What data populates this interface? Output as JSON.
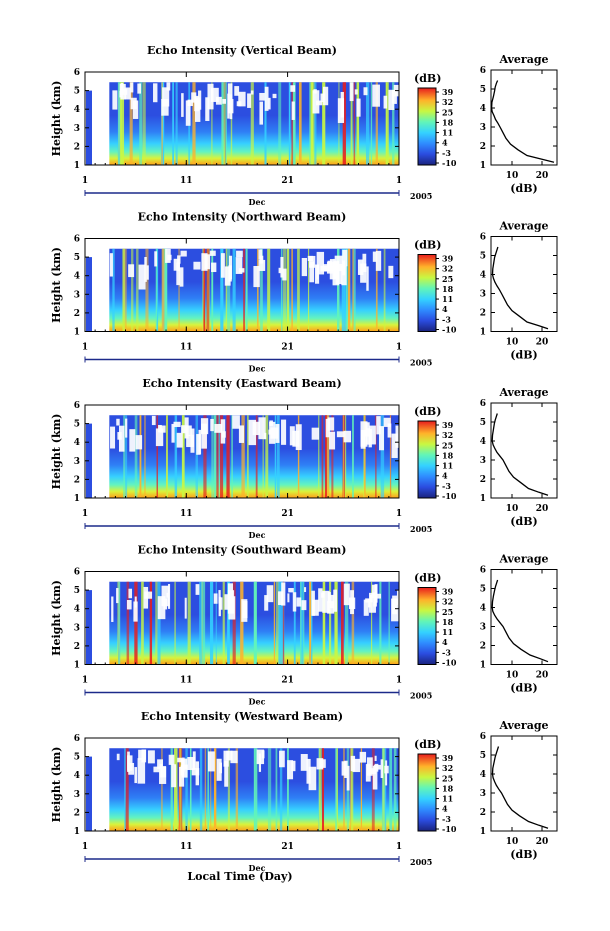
{
  "figure": {
    "xlabel": "Local Time (Day)",
    "month_label": "Dec",
    "year_label": "2005"
  },
  "chart_data": [
    {
      "type": "heatmap",
      "title": "Echo Intensity (Vertical Beam)",
      "ylabel": "Height (km)",
      "xlabel": "",
      "x_ticks": [
        "1",
        "11",
        "21",
        "1"
      ],
      "y_ticks": [
        "1",
        "2",
        "3",
        "4",
        "5",
        "6"
      ],
      "ylim": [
        1,
        6
      ],
      "colorbar_unit": "(dB)",
      "colorbar_ticks": [
        "39",
        "32",
        "25",
        "18",
        "11",
        "4",
        "-3",
        "-10"
      ],
      "colorbar_range": [
        -10,
        39
      ],
      "data_gap_days": [
        1,
        2.4
      ],
      "average": {
        "title": "Average",
        "xlabel": "(dB)",
        "x_ticks": [
          "10",
          "20"
        ],
        "x_range": [
          3,
          25
        ],
        "y_ticks": [
          "1",
          "2",
          "3",
          "4",
          "5",
          "6"
        ],
        "profile_db": [
          24,
          20,
          15,
          12,
          9.5,
          8,
          7,
          6,
          5.3,
          4.5,
          4,
          3.4,
          3.2,
          3.3,
          3.8,
          4.2,
          4.4,
          4.8,
          5.2
        ],
        "profile_km": [
          1.15,
          1.3,
          1.5,
          1.8,
          2.1,
          2.4,
          2.7,
          3.0,
          3.2,
          3.4,
          3.6,
          3.8,
          4.0,
          4.3,
          4.6,
          4.9,
          5.1,
          5.3,
          5.45
        ]
      }
    },
    {
      "type": "heatmap",
      "title": "Echo Intensity (Northward Beam)",
      "ylabel": "Height (km)",
      "xlabel": "",
      "x_ticks": [
        "1",
        "11",
        "21",
        "1"
      ],
      "y_ticks": [
        "1",
        "2",
        "3",
        "4",
        "5",
        "6"
      ],
      "ylim": [
        1,
        6
      ],
      "colorbar_unit": "(dB)",
      "colorbar_ticks": [
        "39",
        "32",
        "25",
        "18",
        "11",
        "4",
        "-3",
        "-10"
      ],
      "colorbar_range": [
        -10,
        39
      ],
      "data_gap_days": [
        1,
        2.4
      ],
      "average": {
        "title": "Average",
        "xlabel": "(dB)",
        "x_ticks": [
          "10",
          "20"
        ],
        "x_range": [
          3,
          25
        ],
        "y_ticks": [
          "1",
          "2",
          "3",
          "4",
          "5",
          "6"
        ],
        "profile_db": [
          22,
          19,
          15,
          12.5,
          10,
          8.5,
          7.5,
          6.5,
          5.8,
          5,
          4.3,
          3.8,
          3.5,
          3.6,
          3.9,
          4.2,
          4.6,
          5,
          5.3
        ],
        "profile_km": [
          1.15,
          1.3,
          1.5,
          1.8,
          2.1,
          2.4,
          2.7,
          3.0,
          3.2,
          3.4,
          3.6,
          3.8,
          4.0,
          4.3,
          4.6,
          4.9,
          5.1,
          5.3,
          5.45
        ]
      }
    },
    {
      "type": "heatmap",
      "title": "Echo Intensity (Eastward Beam)",
      "ylabel": "Height (km)",
      "xlabel": "",
      "x_ticks": [
        "1",
        "11",
        "21",
        "1"
      ],
      "y_ticks": [
        "1",
        "2",
        "3",
        "4",
        "5",
        "6"
      ],
      "ylim": [
        1,
        6
      ],
      "colorbar_unit": "(dB)",
      "colorbar_ticks": [
        "39",
        "32",
        "25",
        "18",
        "11",
        "4",
        "-3",
        "-10"
      ],
      "colorbar_range": [
        -10,
        39
      ],
      "data_gap_days": [
        1,
        2.4
      ],
      "average": {
        "title": "Average",
        "xlabel": "(dB)",
        "x_ticks": [
          "10",
          "20"
        ],
        "x_range": [
          3,
          25
        ],
        "y_ticks": [
          "1",
          "2",
          "3",
          "4",
          "5",
          "6"
        ],
        "profile_db": [
          22,
          19,
          15.5,
          13,
          10.5,
          9,
          8,
          7,
          6,
          5,
          4.3,
          3.7,
          3.4,
          3.5,
          3.8,
          4.1,
          4.4,
          4.8,
          5.1
        ],
        "profile_km": [
          1.15,
          1.3,
          1.5,
          1.8,
          2.1,
          2.4,
          2.7,
          3.0,
          3.2,
          3.4,
          3.6,
          3.8,
          4.0,
          4.3,
          4.6,
          4.9,
          5.1,
          5.3,
          5.45
        ]
      }
    },
    {
      "type": "heatmap",
      "title": "Echo Intensity (Southward Beam)",
      "ylabel": "Height (km)",
      "xlabel": "",
      "x_ticks": [
        "1",
        "11",
        "21",
        "1"
      ],
      "y_ticks": [
        "1",
        "2",
        "3",
        "4",
        "5",
        "6"
      ],
      "ylim": [
        1,
        6
      ],
      "colorbar_unit": "(dB)",
      "colorbar_ticks": [
        "39",
        "32",
        "25",
        "18",
        "11",
        "4",
        "-3",
        "-10"
      ],
      "colorbar_range": [
        -10,
        39
      ],
      "data_gap_days": [
        1,
        2.4
      ],
      "average": {
        "title": "Average",
        "xlabel": "(dB)",
        "x_ticks": [
          "10",
          "20"
        ],
        "x_range": [
          3,
          25
        ],
        "y_ticks": [
          "1",
          "2",
          "3",
          "4",
          "5",
          "6"
        ],
        "profile_db": [
          22,
          19.5,
          16,
          13,
          10.5,
          9,
          8,
          7,
          6,
          5,
          4.2,
          3.6,
          3.4,
          3.5,
          3.8,
          4.2,
          4.5,
          4.9,
          5.2
        ],
        "profile_km": [
          1.15,
          1.3,
          1.5,
          1.8,
          2.1,
          2.4,
          2.7,
          3.0,
          3.2,
          3.4,
          3.6,
          3.8,
          4.0,
          4.3,
          4.6,
          4.9,
          5.1,
          5.3,
          5.45
        ]
      }
    },
    {
      "type": "heatmap",
      "title": "Echo Intensity (Westward Beam)",
      "ylabel": "Height (km)",
      "xlabel": "",
      "x_ticks": [
        "1",
        "11",
        "21",
        "1"
      ],
      "y_ticks": [
        "1",
        "2",
        "3",
        "4",
        "5",
        "6"
      ],
      "ylim": [
        1,
        6
      ],
      "colorbar_unit": "(dB)",
      "colorbar_ticks": [
        "39",
        "32",
        "25",
        "18",
        "11",
        "4",
        "-3",
        "-10"
      ],
      "colorbar_range": [
        -10,
        39
      ],
      "data_gap_days": [
        1,
        2.4
      ],
      "average": {
        "title": "Average",
        "xlabel": "(dB)",
        "x_ticks": [
          "10",
          "20"
        ],
        "x_range": [
          3,
          25
        ],
        "y_ticks": [
          "1",
          "2",
          "3",
          "4",
          "5",
          "6"
        ],
        "profile_db": [
          22,
          19,
          15.5,
          12.5,
          10,
          8.5,
          7.5,
          6.5,
          5.6,
          4.8,
          4.2,
          3.7,
          3.5,
          3.6,
          4,
          4.4,
          4.8,
          5.2,
          5.5
        ],
        "profile_km": [
          1.15,
          1.3,
          1.5,
          1.8,
          2.1,
          2.4,
          2.7,
          3.0,
          3.2,
          3.4,
          3.6,
          3.8,
          4.0,
          4.3,
          4.6,
          4.9,
          5.1,
          5.3,
          5.45
        ]
      }
    }
  ]
}
